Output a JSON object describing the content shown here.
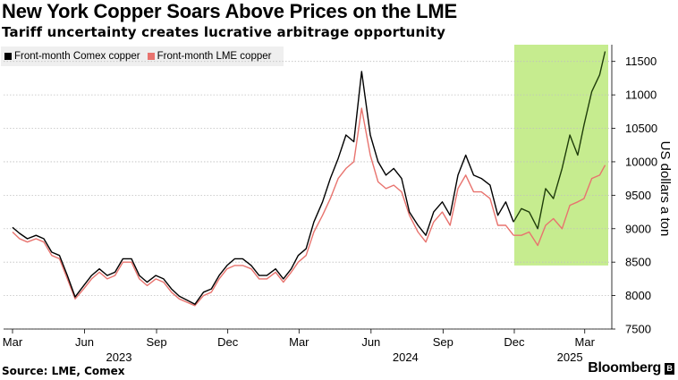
{
  "title": "New York Copper Soars Above Prices on the LME",
  "subtitle": "Tariff uncertainty creates lucrative arbitrage opportunity",
  "legend": [
    {
      "label": "Front-month Comex copper",
      "color": "#000000"
    },
    {
      "label": "Front-month LME copper",
      "color": "#e8736e"
    }
  ],
  "source": "Source: LME, Comex",
  "brand": "Bloomberg",
  "brand_mark": "B",
  "colors": {
    "comex": "#000000",
    "comex_highlight": "#1f3d0a",
    "lme": "#e8736e",
    "highlight": "#c6ec8f",
    "grid": "#bfbfbf"
  },
  "chart_data": {
    "type": "line",
    "ylabel": "US dollars a ton",
    "y_axis_side": "right",
    "ylim": [
      7500,
      11750
    ],
    "yticks": [
      7500,
      8000,
      8500,
      9000,
      9500,
      10000,
      10500,
      11000,
      11500
    ],
    "grid": "horizontal dotted",
    "x_ticks": [
      {
        "label": "Mar",
        "x": "2023-03-01"
      },
      {
        "label": "Jun",
        "x": "2023-06-01"
      },
      {
        "label": "Sep",
        "x": "2023-09-01"
      },
      {
        "label": "Dec",
        "x": "2023-12-01"
      },
      {
        "label": "Mar",
        "x": "2024-03-01"
      },
      {
        "label": "Jun",
        "x": "2024-06-01"
      },
      {
        "label": "Sep",
        "x": "2024-09-01"
      },
      {
        "label": "Dec",
        "x": "2024-12-01"
      },
      {
        "label": "Mar",
        "x": "2025-03-01"
      }
    ],
    "x_year_labels": [
      {
        "label": "2023",
        "x": "2023-07-15"
      },
      {
        "label": "2024",
        "x": "2024-07-15"
      },
      {
        "label": "2025",
        "x": "2025-02-10"
      }
    ],
    "x_range": [
      "2023-03-01",
      "2025-03-31"
    ],
    "highlight_region": {
      "x_start": "2024-12-01",
      "x_end": "2025-03-31",
      "y_start": 8450,
      "y_end": 11750
    },
    "series": [
      {
        "name": "Front-month Comex copper",
        "points": [
          [
            "2023-03-01",
            9020
          ],
          [
            "2023-03-10",
            8930
          ],
          [
            "2023-03-20",
            8850
          ],
          [
            "2023-03-31",
            8900
          ],
          [
            "2023-04-10",
            8850
          ],
          [
            "2023-04-20",
            8650
          ],
          [
            "2023-04-30",
            8600
          ],
          [
            "2023-05-10",
            8300
          ],
          [
            "2023-05-20",
            7980
          ],
          [
            "2023-05-31",
            8150
          ],
          [
            "2023-06-10",
            8300
          ],
          [
            "2023-06-20",
            8400
          ],
          [
            "2023-06-30",
            8300
          ],
          [
            "2023-07-10",
            8350
          ],
          [
            "2023-07-20",
            8550
          ],
          [
            "2023-07-31",
            8550
          ],
          [
            "2023-08-10",
            8300
          ],
          [
            "2023-08-20",
            8200
          ],
          [
            "2023-08-31",
            8300
          ],
          [
            "2023-09-10",
            8250
          ],
          [
            "2023-09-20",
            8100
          ],
          [
            "2023-09-30",
            7990
          ],
          [
            "2023-10-10",
            7930
          ],
          [
            "2023-10-20",
            7870
          ],
          [
            "2023-10-31",
            8050
          ],
          [
            "2023-11-10",
            8100
          ],
          [
            "2023-11-20",
            8300
          ],
          [
            "2023-11-30",
            8450
          ],
          [
            "2023-12-10",
            8550
          ],
          [
            "2023-12-20",
            8550
          ],
          [
            "2023-12-31",
            8450
          ],
          [
            "2024-01-10",
            8300
          ],
          [
            "2024-01-20",
            8300
          ],
          [
            "2024-01-31",
            8400
          ],
          [
            "2024-02-10",
            8250
          ],
          [
            "2024-02-20",
            8400
          ],
          [
            "2024-02-29",
            8600
          ],
          [
            "2024-03-10",
            8700
          ],
          [
            "2024-03-20",
            9100
          ],
          [
            "2024-03-31",
            9400
          ],
          [
            "2024-04-10",
            9750
          ],
          [
            "2024-04-20",
            10050
          ],
          [
            "2024-04-30",
            10400
          ],
          [
            "2024-05-10",
            10300
          ],
          [
            "2024-05-20",
            11350
          ],
          [
            "2024-05-31",
            10400
          ],
          [
            "2024-06-10",
            10000
          ],
          [
            "2024-06-20",
            9800
          ],
          [
            "2024-06-30",
            9900
          ],
          [
            "2024-07-10",
            9750
          ],
          [
            "2024-07-20",
            9250
          ],
          [
            "2024-07-31",
            9050
          ],
          [
            "2024-08-10",
            8900
          ],
          [
            "2024-08-20",
            9250
          ],
          [
            "2024-08-31",
            9400
          ],
          [
            "2024-09-10",
            9200
          ],
          [
            "2024-09-20",
            9800
          ],
          [
            "2024-09-30",
            10100
          ],
          [
            "2024-10-10",
            9800
          ],
          [
            "2024-10-20",
            9750
          ],
          [
            "2024-10-31",
            9650
          ],
          [
            "2024-11-10",
            9200
          ],
          [
            "2024-11-20",
            9400
          ],
          [
            "2024-11-30",
            9100
          ],
          [
            "2024-12-10",
            9300
          ],
          [
            "2024-12-20",
            9250
          ],
          [
            "2024-12-31",
            9000
          ],
          [
            "2025-01-10",
            9600
          ],
          [
            "2025-01-20",
            9450
          ],
          [
            "2025-01-31",
            9900
          ],
          [
            "2025-02-10",
            10400
          ],
          [
            "2025-02-20",
            10100
          ],
          [
            "2025-02-28",
            10550
          ],
          [
            "2025-03-10",
            11050
          ],
          [
            "2025-03-20",
            11300
          ],
          [
            "2025-03-27",
            11650
          ]
        ]
      },
      {
        "name": "Front-month LME copper",
        "points": [
          [
            "2023-03-01",
            8950
          ],
          [
            "2023-03-10",
            8850
          ],
          [
            "2023-03-20",
            8800
          ],
          [
            "2023-03-31",
            8850
          ],
          [
            "2023-04-10",
            8800
          ],
          [
            "2023-04-20",
            8600
          ],
          [
            "2023-04-30",
            8550
          ],
          [
            "2023-05-10",
            8250
          ],
          [
            "2023-05-20",
            7950
          ],
          [
            "2023-05-31",
            8100
          ],
          [
            "2023-06-10",
            8250
          ],
          [
            "2023-06-20",
            8350
          ],
          [
            "2023-06-30",
            8250
          ],
          [
            "2023-07-10",
            8300
          ],
          [
            "2023-07-20",
            8500
          ],
          [
            "2023-07-31",
            8500
          ],
          [
            "2023-08-10",
            8250
          ],
          [
            "2023-08-20",
            8150
          ],
          [
            "2023-08-31",
            8250
          ],
          [
            "2023-09-10",
            8200
          ],
          [
            "2023-09-20",
            8050
          ],
          [
            "2023-09-30",
            7950
          ],
          [
            "2023-10-10",
            7900
          ],
          [
            "2023-10-20",
            7850
          ],
          [
            "2023-10-31",
            8000
          ],
          [
            "2023-11-10",
            8050
          ],
          [
            "2023-11-20",
            8250
          ],
          [
            "2023-11-30",
            8400
          ],
          [
            "2023-12-10",
            8450
          ],
          [
            "2023-12-20",
            8450
          ],
          [
            "2023-12-31",
            8400
          ],
          [
            "2024-01-10",
            8250
          ],
          [
            "2024-01-20",
            8250
          ],
          [
            "2024-01-31",
            8350
          ],
          [
            "2024-02-10",
            8200
          ],
          [
            "2024-02-20",
            8350
          ],
          [
            "2024-02-29",
            8500
          ],
          [
            "2024-03-10",
            8600
          ],
          [
            "2024-03-20",
            8950
          ],
          [
            "2024-03-31",
            9200
          ],
          [
            "2024-04-10",
            9450
          ],
          [
            "2024-04-20",
            9750
          ],
          [
            "2024-04-30",
            9900
          ],
          [
            "2024-05-10",
            10000
          ],
          [
            "2024-05-20",
            10800
          ],
          [
            "2024-05-31",
            10100
          ],
          [
            "2024-06-10",
            9700
          ],
          [
            "2024-06-20",
            9600
          ],
          [
            "2024-06-30",
            9650
          ],
          [
            "2024-07-10",
            9550
          ],
          [
            "2024-07-20",
            9200
          ],
          [
            "2024-07-31",
            8950
          ],
          [
            "2024-08-10",
            8800
          ],
          [
            "2024-08-20",
            9100
          ],
          [
            "2024-08-31",
            9250
          ],
          [
            "2024-09-10",
            9050
          ],
          [
            "2024-09-20",
            9600
          ],
          [
            "2024-09-30",
            9800
          ],
          [
            "2024-10-10",
            9550
          ],
          [
            "2024-10-20",
            9550
          ],
          [
            "2024-10-31",
            9450
          ],
          [
            "2024-11-10",
            9050
          ],
          [
            "2024-11-20",
            9050
          ],
          [
            "2024-11-30",
            8900
          ],
          [
            "2024-12-10",
            8900
          ],
          [
            "2024-12-20",
            8950
          ],
          [
            "2024-12-31",
            8750
          ],
          [
            "2025-01-10",
            9050
          ],
          [
            "2025-01-20",
            9150
          ],
          [
            "2025-01-31",
            9000
          ],
          [
            "2025-02-10",
            9350
          ],
          [
            "2025-02-20",
            9400
          ],
          [
            "2025-02-28",
            9450
          ],
          [
            "2025-03-10",
            9750
          ],
          [
            "2025-03-20",
            9800
          ],
          [
            "2025-03-27",
            9950
          ]
        ]
      }
    ]
  }
}
